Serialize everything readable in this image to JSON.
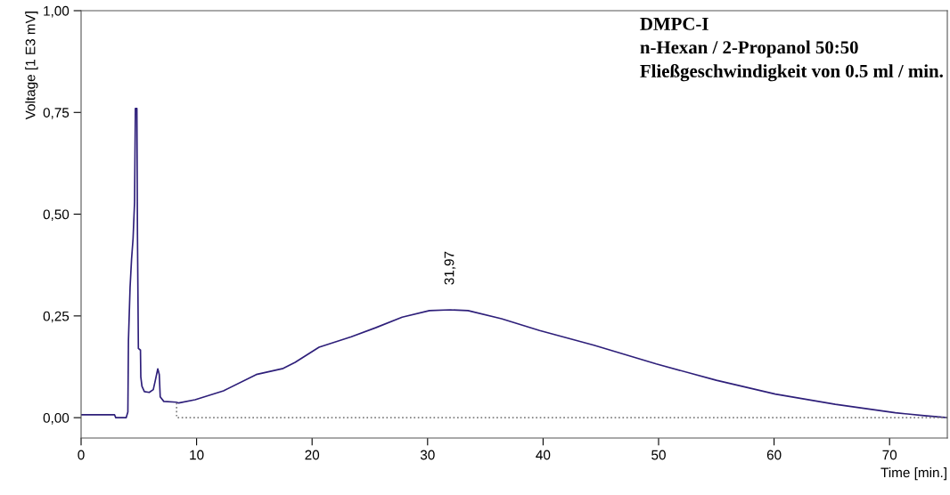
{
  "chart_data": {
    "type": "line",
    "xlabel": "Time [min.]",
    "ylabel": "Voltage [1 E3 mV]",
    "xlim": [
      0,
      75
    ],
    "ylim": [
      -0.05,
      1.0
    ],
    "xticks": [
      0,
      10,
      20,
      30,
      40,
      50,
      60,
      70
    ],
    "yticks": [
      {
        "value": 0,
        "label": "0,00"
      },
      {
        "value": 0.25,
        "label": "0,25"
      },
      {
        "value": 0.5,
        "label": "0,50"
      },
      {
        "value": 0.75,
        "label": "0,75"
      },
      {
        "value": 1.0,
        "label": "1,00"
      }
    ],
    "grid": false,
    "legend": false,
    "marker": "none",
    "series": [
      {
        "color": "#2e1f7a",
        "line_style": "solid",
        "x": [
          0,
          2.9,
          3.0,
          3.9,
          4.05,
          4.1,
          4.24,
          4.37,
          4.5,
          4.63,
          4.7,
          4.83,
          4.88,
          4.96,
          5.14,
          5.17,
          5.27,
          5.48,
          5.9,
          6.25,
          6.43,
          6.64,
          6.77,
          6.85,
          7.16,
          8.24,
          8.45,
          9.87,
          12.33,
          15.17,
          17.5,
          18.53,
          20.6,
          23.4,
          25.5,
          27.8,
          30.16,
          31.96,
          33.5,
          36.4,
          39.7,
          44.4,
          49.8,
          55,
          60.1,
          65.3,
          70.5,
          73.0,
          75
        ],
        "values": [
          0.007,
          0.007,
          0.0,
          0.0,
          0.014,
          0.19,
          0.32,
          0.39,
          0.44,
          0.53,
          0.76,
          0.76,
          0.45,
          0.17,
          0.166,
          0.1,
          0.077,
          0.064,
          0.062,
          0.069,
          0.092,
          0.12,
          0.106,
          0.051,
          0.04,
          0.038,
          0.036,
          0.044,
          0.066,
          0.106,
          0.121,
          0.136,
          0.173,
          0.199,
          0.221,
          0.247,
          0.263,
          0.265,
          0.263,
          0.243,
          0.214,
          0.178,
          0.132,
          0.092,
          0.058,
          0.033,
          0.012,
          0.005,
          0.0
        ]
      },
      {
        "color": "#808080",
        "line_style": "dotted",
        "x": [
          8.27,
          8.27,
          75
        ],
        "values": [
          0.036,
          0.0,
          0.0
        ]
      }
    ],
    "annotations": [
      {
        "text": "31,97",
        "x": 31.97,
        "y": 0.265
      },
      "DMPC-I",
      "n-Hexan / 2-Propanol 50:50",
      "Fließgeschwindigkeit von 0.5 ml / min."
    ]
  }
}
